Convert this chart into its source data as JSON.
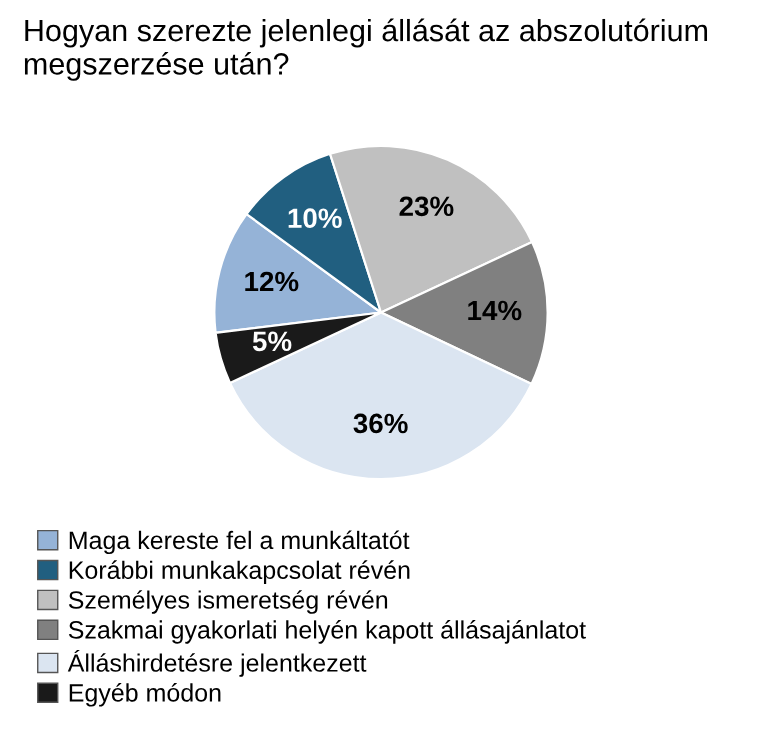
{
  "chart_data": {
    "type": "pie",
    "title": "Hogyan szerezte jelenlegi állását az abszolutórium megszerzése után?",
    "categories": [
      "Maga kereste fel a munkáltatót",
      "Korábbi munkakapcsolat révén",
      "Személyes ismeretség révén",
      "Szakmai gyakorlati helyén kapott állásajánlatot",
      "Álláshirdetésre jelentkezett",
      "Egyéb módon"
    ],
    "values": [
      12,
      10,
      23,
      14,
      36,
      5
    ],
    "colors": [
      "#95b3d7",
      "#215f80",
      "#c0c0c0",
      "#808080",
      "#dbe5f1",
      "#1a1a1a"
    ],
    "value_labels": [
      "12%",
      "10%",
      "23%",
      "14%",
      "36%",
      "5%"
    ],
    "legend": "bottom left"
  }
}
